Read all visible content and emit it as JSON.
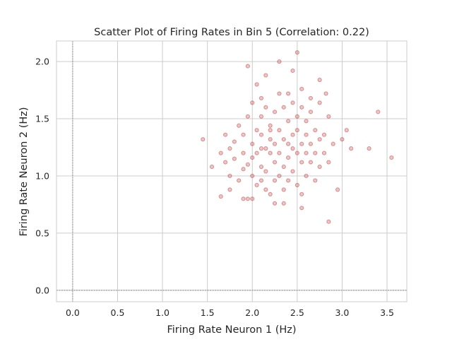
{
  "chart_data": {
    "type": "scatter",
    "title": "Scatter Plot of Firing Rates in Bin 5 (Correlation: 0.22)",
    "xlabel": "Firing Rate Neuron 1 (Hz)",
    "ylabel": "Firing Rate Neuron 2 (Hz)",
    "xlim": [
      -0.18,
      3.72
    ],
    "ylim": [
      -0.1,
      2.18
    ],
    "xticks": [
      0.0,
      0.5,
      1.0,
      1.5,
      2.0,
      2.5,
      3.0,
      3.5
    ],
    "xtick_labels": [
      "0.0",
      "0.5",
      "1.0",
      "1.5",
      "2.0",
      "2.5",
      "3.0",
      "3.5"
    ],
    "yticks": [
      0.0,
      0.5,
      1.0,
      1.5,
      2.0
    ],
    "ytick_labels": [
      "0.0",
      "0.5",
      "1.0",
      "1.5",
      "2.0"
    ],
    "grid": true,
    "reference_lines": {
      "x": 0,
      "y": 0
    },
    "marker_color": "#d9534f",
    "marker_edge_color": "#8b0000",
    "marker_alpha": 0.35,
    "x": [
      1.45,
      1.55,
      1.65,
      1.65,
      1.7,
      1.7,
      1.75,
      1.75,
      1.75,
      1.8,
      1.8,
      1.85,
      1.85,
      1.9,
      1.9,
      1.9,
      1.95,
      1.95,
      1.95,
      2.0,
      2.0,
      2.0,
      2.0,
      2.05,
      2.05,
      2.05,
      2.05,
      2.1,
      2.1,
      2.1,
      2.1,
      2.1,
      2.15,
      2.15,
      2.15,
      2.15,
      2.2,
      2.2,
      2.2,
      2.2,
      2.25,
      2.25,
      2.25,
      2.25,
      2.3,
      2.3,
      2.3,
      2.3,
      2.35,
      2.35,
      2.35,
      2.35,
      2.4,
      2.4,
      2.4,
      2.4,
      2.45,
      2.45,
      2.45,
      2.45,
      2.5,
      2.5,
      2.5,
      2.5,
      2.55,
      2.55,
      2.55,
      2.55,
      2.6,
      2.6,
      2.6,
      2.6,
      2.65,
      2.65,
      2.65,
      2.7,
      2.7,
      2.7,
      2.75,
      2.75,
      2.75,
      2.8,
      2.8,
      2.85,
      2.85,
      2.9,
      2.95,
      3.0,
      3.05,
      3.1,
      3.3,
      3.4,
      3.55,
      1.95,
      2.15,
      2.3,
      2.45,
      2.55,
      2.75,
      2.82,
      1.9,
      2.25,
      2.35,
      2.55,
      2.0,
      2.85,
      2.1,
      2.4,
      2.65,
      2.2,
      2.5
    ],
    "y": [
      1.32,
      1.08,
      1.2,
      0.82,
      1.36,
      1.12,
      1.0,
      1.24,
      0.88,
      1.3,
      1.15,
      1.44,
      0.96,
      1.2,
      1.36,
      1.06,
      1.1,
      1.52,
      0.8,
      1.28,
      1.0,
      1.64,
      1.16,
      1.4,
      1.2,
      0.92,
      1.8,
      1.24,
      1.08,
      1.52,
      0.96,
      1.36,
      1.24,
      1.6,
      1.04,
      0.88,
      1.44,
      1.2,
      1.32,
      0.84,
      1.28,
      1.56,
      1.12,
      0.96,
      1.4,
      1.2,
      1.72,
      1.0,
      1.32,
      1.6,
      1.08,
      0.88,
      1.28,
      1.48,
      1.16,
      0.96,
      1.36,
      1.24,
      1.64,
      1.04,
      1.2,
      1.4,
      1.52,
      0.92,
      1.28,
      1.12,
      1.6,
      0.84,
      1.36,
      1.2,
      1.48,
      1.0,
      1.28,
      1.56,
      1.12,
      1.4,
      1.2,
      0.96,
      1.32,
      1.64,
      1.08,
      1.36,
      1.2,
      1.52,
      1.12,
      1.28,
      0.88,
      1.32,
      1.4,
      1.24,
      1.24,
      1.56,
      1.16,
      1.96,
      1.88,
      2.0,
      1.92,
      1.76,
      1.84,
      1.72,
      0.8,
      0.76,
      0.76,
      0.72,
      0.8,
      0.6,
      1.68,
      1.72,
      1.68,
      1.4,
      2.08
    ]
  }
}
